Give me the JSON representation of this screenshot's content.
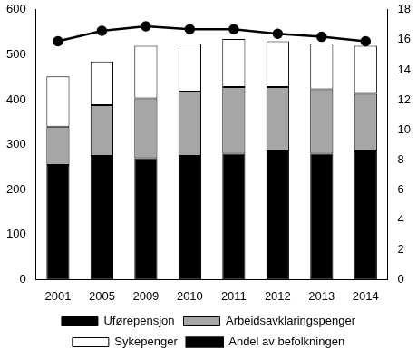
{
  "chart_data": {
    "type": "bar",
    "categories": [
      "2001",
      "2005",
      "2009",
      "2010",
      "2011",
      "2012",
      "2013",
      "2014"
    ],
    "stacked": true,
    "grid": false,
    "legend": "bottom",
    "ylim": [
      0,
      600
    ],
    "yticks": [
      0,
      100,
      200,
      300,
      400,
      500,
      600
    ],
    "y2lim": [
      0,
      18
    ],
    "y2ticks": [
      0,
      2,
      4,
      6,
      8,
      10,
      12,
      14,
      16,
      18
    ],
    "series": [
      {
        "name": "Uførepensjon",
        "type": "bar",
        "color": "#000000",
        "values": [
          255,
          275,
          270,
          275,
          280,
          285,
          280,
          285
        ]
      },
      {
        "name": "Arbeidsavklaringspenger",
        "type": "bar",
        "color": "#a6a6a6",
        "values": [
          85,
          113,
          133,
          143,
          148,
          143,
          143,
          128
        ]
      },
      {
        "name": "Sykepenger",
        "type": "bar",
        "color": "#ffffff",
        "values": [
          112,
          97,
          117,
          107,
          107,
          102,
          102,
          107
        ]
      },
      {
        "name": "Andel av befolkningen",
        "type": "line",
        "axis": "y2",
        "color": "#000000",
        "marker": "circle",
        "values": [
          15.9,
          16.6,
          16.9,
          16.7,
          16.7,
          16.4,
          16.2,
          15.9
        ]
      }
    ]
  }
}
